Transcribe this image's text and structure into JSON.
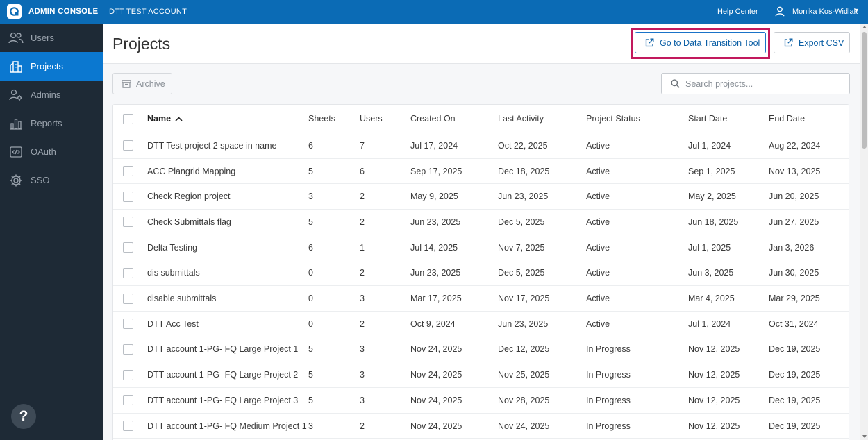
{
  "topbar": {
    "app_title": "ADMIN CONSOLE",
    "account": "DTT TEST ACCOUNT",
    "help": "Help Center",
    "user": "Monika Kos-Widlak"
  },
  "sidebar": {
    "items": [
      {
        "label": "Users",
        "icon": "users-icon"
      },
      {
        "label": "Projects",
        "icon": "projects-icon",
        "active": true
      },
      {
        "label": "Admins",
        "icon": "admins-icon"
      },
      {
        "label": "Reports",
        "icon": "reports-icon"
      },
      {
        "label": "OAuth",
        "icon": "oauth-icon"
      },
      {
        "label": "SSO",
        "icon": "sso-icon"
      }
    ],
    "help_label": "?"
  },
  "page": {
    "title": "Projects",
    "dtt_button": "Go to Data Transition Tool",
    "export_button": "Export CSV",
    "archive_button": "Archive",
    "search_placeholder": "Search projects..."
  },
  "table": {
    "headers": {
      "name": "Name",
      "sheets": "Sheets",
      "users": "Users",
      "created": "Created On",
      "activity": "Last Activity",
      "status": "Project Status",
      "start": "Start Date",
      "end": "End Date"
    },
    "rows": [
      {
        "name": "DTT Test project 2 space in name",
        "sheets": "6",
        "users": "7",
        "created": "Jul 17, 2024",
        "activity": "Oct 22, 2025",
        "status": "Active",
        "start": "Jul 1, 2024",
        "end": "Aug 22, 2024"
      },
      {
        "name": "ACC Plangrid Mapping",
        "sheets": "5",
        "users": "6",
        "created": "Sep 17, 2025",
        "activity": "Dec 18, 2025",
        "status": "Active",
        "start": "Sep 1, 2025",
        "end": "Nov 13, 2025"
      },
      {
        "name": "Check Region project",
        "sheets": "3",
        "users": "2",
        "created": "May 9, 2025",
        "activity": "Jun 23, 2025",
        "status": "Active",
        "start": "May 2, 2025",
        "end": "Jun 20, 2025"
      },
      {
        "name": "Check Submittals flag",
        "sheets": "5",
        "users": "2",
        "created": "Jun 23, 2025",
        "activity": "Dec 5, 2025",
        "status": "Active",
        "start": "Jun 18, 2025",
        "end": "Jun 27, 2025"
      },
      {
        "name": "Delta Testing",
        "sheets": "6",
        "users": "1",
        "created": "Jul 14, 2025",
        "activity": "Nov 7, 2025",
        "status": "Active",
        "start": "Jul 1, 2025",
        "end": "Jan 3, 2026"
      },
      {
        "name": "dis submittals",
        "sheets": "0",
        "users": "2",
        "created": "Jun 23, 2025",
        "activity": "Dec 5, 2025",
        "status": "Active",
        "start": "Jun 3, 2025",
        "end": "Jun 30, 2025"
      },
      {
        "name": "disable submittals",
        "sheets": "0",
        "users": "3",
        "created": "Mar 17, 2025",
        "activity": "Nov 17, 2025",
        "status": "Active",
        "start": "Mar 4, 2025",
        "end": "Mar 29, 2025"
      },
      {
        "name": "DTT Acc Test",
        "sheets": "0",
        "users": "2",
        "created": "Oct 9, 2024",
        "activity": "Jun 23, 2025",
        "status": "Active",
        "start": "Jul 1, 2024",
        "end": "Oct 31, 2024"
      },
      {
        "name": "DTT account 1-PG- FQ Large Project 1",
        "sheets": "5",
        "users": "3",
        "created": "Nov 24, 2025",
        "activity": "Dec 12, 2025",
        "status": "In Progress",
        "start": "Nov 12, 2025",
        "end": "Dec 19, 2025"
      },
      {
        "name": "DTT account 1-PG- FQ Large Project 2",
        "sheets": "5",
        "users": "3",
        "created": "Nov 24, 2025",
        "activity": "Nov 25, 2025",
        "status": "In Progress",
        "start": "Nov 12, 2025",
        "end": "Dec 19, 2025"
      },
      {
        "name": "DTT account 1-PG- FQ Large Project 3",
        "sheets": "5",
        "users": "3",
        "created": "Nov 24, 2025",
        "activity": "Nov 28, 2025",
        "status": "In Progress",
        "start": "Nov 12, 2025",
        "end": "Dec 19, 2025"
      },
      {
        "name": "DTT account 1-PG- FQ Medium Project 1",
        "sheets": "3",
        "users": "2",
        "created": "Nov 24, 2025",
        "activity": "Nov 24, 2025",
        "status": "In Progress",
        "start": "Nov 12, 2025",
        "end": "Dec 19, 2025"
      }
    ]
  },
  "colors": {
    "topbar": "#0b6bb5",
    "sidebar": "#1e2a36",
    "active_nav": "#0b78d0",
    "highlight": "#c2195d",
    "link": "#0b5fa5"
  }
}
